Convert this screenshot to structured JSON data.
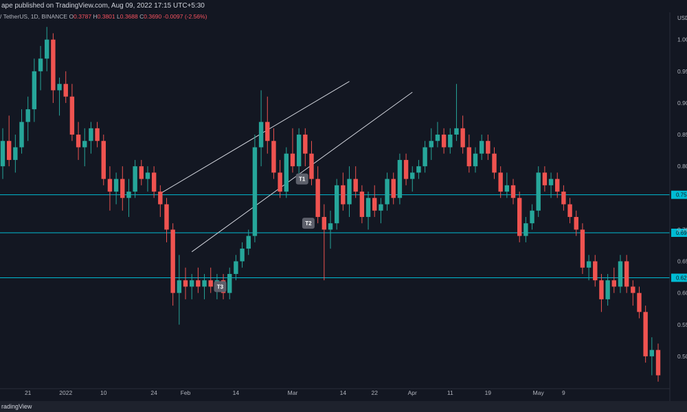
{
  "header": {
    "publish_text": "ape published on TradingView.com, Aug 09, 2022 17:15 UTC+5:30"
  },
  "symbol_line": {
    "symbol": "/ TetherUS, 1D, BINANCE",
    "o_label": "O",
    "o_value": "0.3787",
    "h_label": "H",
    "h_value": "0.3801",
    "l_label": "L",
    "l_value": "0.3688",
    "c_label": "C",
    "c_value": "0.3690",
    "change": "-0.0097 (-2.56%)"
  },
  "footer": {
    "brand": "radingView"
  },
  "colors": {
    "up": "#26a69a",
    "down": "#ef5350",
    "hline": "#00bcd4",
    "trend": "#d1d4dc",
    "tag_bg": "#5d606b"
  },
  "chart_data": {
    "type": "candlestick",
    "currency_label": "USD",
    "y_axis_ticks": [
      "1.00",
      "0.95",
      "0.90",
      "0.85",
      "0.80",
      "0.70",
      "0.65",
      "0.60",
      "0.55",
      "0.50"
    ],
    "ylim": [
      0.45,
      1.03
    ],
    "x_axis_ticks": [
      "21",
      "2022",
      "10",
      "24",
      "Feb",
      "14",
      "Mar",
      "14",
      "22",
      "Apr",
      "11",
      "19",
      "May",
      "9"
    ],
    "horizontal_lines": [
      {
        "price": 0.755,
        "label": "0.75"
      },
      {
        "price": 0.695,
        "label": "0.69"
      },
      {
        "price": 0.624,
        "label": "0.62"
      }
    ],
    "trendlines": [
      {
        "from": [
          25,
          0.757
        ],
        "to": [
          55,
          0.934
        ]
      },
      {
        "from": [
          30,
          0.665
        ],
        "to": [
          65,
          0.917
        ]
      }
    ],
    "annotations": [
      {
        "label": "T1",
        "at": [
          47.5,
          0.78
        ]
      },
      {
        "label": "T2",
        "at": [
          48.5,
          0.71
        ]
      },
      {
        "label": "T3",
        "at": [
          34.5,
          0.61
        ]
      }
    ],
    "ohlc": [
      [
        0.8,
        0.86,
        0.78,
        0.84
      ],
      [
        0.84,
        0.88,
        0.8,
        0.81
      ],
      [
        0.81,
        0.85,
        0.79,
        0.83
      ],
      [
        0.83,
        0.89,
        0.82,
        0.87
      ],
      [
        0.87,
        0.91,
        0.84,
        0.89
      ],
      [
        0.89,
        0.97,
        0.87,
        0.95
      ],
      [
        0.95,
        0.99,
        0.92,
        0.97
      ],
      [
        0.97,
        1.02,
        0.95,
        1.0
      ],
      [
        1.0,
        1.01,
        0.9,
        0.92
      ],
      [
        0.92,
        0.94,
        0.88,
        0.93
      ],
      [
        0.93,
        0.95,
        0.9,
        0.91
      ],
      [
        0.91,
        0.93,
        0.84,
        0.85
      ],
      [
        0.85,
        0.87,
        0.81,
        0.83
      ],
      [
        0.83,
        0.86,
        0.8,
        0.84
      ],
      [
        0.84,
        0.87,
        0.82,
        0.86
      ],
      [
        0.86,
        0.87,
        0.83,
        0.84
      ],
      [
        0.84,
        0.85,
        0.77,
        0.78
      ],
      [
        0.78,
        0.8,
        0.73,
        0.76
      ],
      [
        0.76,
        0.79,
        0.74,
        0.78
      ],
      [
        0.78,
        0.8,
        0.73,
        0.75
      ],
      [
        0.75,
        0.78,
        0.72,
        0.76
      ],
      [
        0.76,
        0.81,
        0.75,
        0.8
      ],
      [
        0.8,
        0.81,
        0.77,
        0.78
      ],
      [
        0.78,
        0.8,
        0.76,
        0.79
      ],
      [
        0.79,
        0.8,
        0.75,
        0.76
      ],
      [
        0.76,
        0.77,
        0.72,
        0.74
      ],
      [
        0.74,
        0.75,
        0.68,
        0.7
      ],
      [
        0.7,
        0.71,
        0.58,
        0.6
      ],
      [
        0.6,
        0.66,
        0.55,
        0.62
      ],
      [
        0.62,
        0.64,
        0.59,
        0.61
      ],
      [
        0.61,
        0.63,
        0.59,
        0.62
      ],
      [
        0.62,
        0.64,
        0.6,
        0.61
      ],
      [
        0.61,
        0.63,
        0.59,
        0.62
      ],
      [
        0.62,
        0.64,
        0.6,
        0.61
      ],
      [
        0.61,
        0.63,
        0.59,
        0.62
      ],
      [
        0.62,
        0.63,
        0.59,
        0.6
      ],
      [
        0.6,
        0.64,
        0.59,
        0.63
      ],
      [
        0.63,
        0.66,
        0.62,
        0.65
      ],
      [
        0.65,
        0.68,
        0.64,
        0.67
      ],
      [
        0.67,
        0.7,
        0.66,
        0.69
      ],
      [
        0.69,
        0.85,
        0.68,
        0.83
      ],
      [
        0.83,
        0.92,
        0.8,
        0.87
      ],
      [
        0.87,
        0.91,
        0.82,
        0.84
      ],
      [
        0.84,
        0.86,
        0.78,
        0.79
      ],
      [
        0.79,
        0.81,
        0.75,
        0.76
      ],
      [
        0.76,
        0.83,
        0.75,
        0.82
      ],
      [
        0.82,
        0.86,
        0.79,
        0.8
      ],
      [
        0.8,
        0.86,
        0.78,
        0.85
      ],
      [
        0.85,
        0.86,
        0.8,
        0.82
      ],
      [
        0.82,
        0.84,
        0.77,
        0.78
      ],
      [
        0.78,
        0.8,
        0.71,
        0.72
      ],
      [
        0.72,
        0.74,
        0.62,
        0.7
      ],
      [
        0.7,
        0.73,
        0.67,
        0.71
      ],
      [
        0.71,
        0.78,
        0.7,
        0.77
      ],
      [
        0.77,
        0.79,
        0.73,
        0.74
      ],
      [
        0.74,
        0.8,
        0.72,
        0.78
      ],
      [
        0.78,
        0.8,
        0.75,
        0.76
      ],
      [
        0.76,
        0.77,
        0.71,
        0.72
      ],
      [
        0.72,
        0.76,
        0.7,
        0.75
      ],
      [
        0.75,
        0.77,
        0.72,
        0.73
      ],
      [
        0.73,
        0.75,
        0.71,
        0.74
      ],
      [
        0.74,
        0.79,
        0.73,
        0.78
      ],
      [
        0.78,
        0.79,
        0.74,
        0.75
      ],
      [
        0.75,
        0.82,
        0.74,
        0.81
      ],
      [
        0.81,
        0.82,
        0.77,
        0.78
      ],
      [
        0.78,
        0.8,
        0.76,
        0.79
      ],
      [
        0.79,
        0.81,
        0.78,
        0.8
      ],
      [
        0.8,
        0.84,
        0.79,
        0.83
      ],
      [
        0.83,
        0.86,
        0.81,
        0.84
      ],
      [
        0.84,
        0.87,
        0.83,
        0.85
      ],
      [
        0.85,
        0.86,
        0.82,
        0.83
      ],
      [
        0.83,
        0.86,
        0.82,
        0.85
      ],
      [
        0.85,
        0.93,
        0.84,
        0.86
      ],
      [
        0.86,
        0.88,
        0.82,
        0.83
      ],
      [
        0.83,
        0.85,
        0.79,
        0.8
      ],
      [
        0.8,
        0.83,
        0.79,
        0.82
      ],
      [
        0.82,
        0.85,
        0.81,
        0.84
      ],
      [
        0.84,
        0.85,
        0.81,
        0.82
      ],
      [
        0.82,
        0.83,
        0.78,
        0.79
      ],
      [
        0.79,
        0.8,
        0.75,
        0.76
      ],
      [
        0.76,
        0.79,
        0.75,
        0.77
      ],
      [
        0.77,
        0.78,
        0.74,
        0.75
      ],
      [
        0.75,
        0.76,
        0.68,
        0.69
      ],
      [
        0.69,
        0.72,
        0.68,
        0.71
      ],
      [
        0.71,
        0.74,
        0.7,
        0.73
      ],
      [
        0.73,
        0.8,
        0.72,
        0.79
      ],
      [
        0.79,
        0.8,
        0.76,
        0.77
      ],
      [
        0.77,
        0.79,
        0.75,
        0.78
      ],
      [
        0.78,
        0.79,
        0.75,
        0.76
      ],
      [
        0.76,
        0.77,
        0.73,
        0.74
      ],
      [
        0.74,
        0.75,
        0.71,
        0.72
      ],
      [
        0.72,
        0.73,
        0.69,
        0.7
      ],
      [
        0.7,
        0.71,
        0.63,
        0.64
      ],
      [
        0.64,
        0.66,
        0.62,
        0.65
      ],
      [
        0.65,
        0.66,
        0.61,
        0.62
      ],
      [
        0.62,
        0.63,
        0.57,
        0.59
      ],
      [
        0.59,
        0.63,
        0.58,
        0.62
      ],
      [
        0.62,
        0.64,
        0.6,
        0.61
      ],
      [
        0.61,
        0.66,
        0.6,
        0.65
      ],
      [
        0.65,
        0.66,
        0.6,
        0.61
      ],
      [
        0.61,
        0.62,
        0.58,
        0.6
      ],
      [
        0.6,
        0.61,
        0.56,
        0.57
      ],
      [
        0.57,
        0.58,
        0.49,
        0.5
      ],
      [
        0.5,
        0.53,
        0.47,
        0.51
      ],
      [
        0.51,
        0.52,
        0.46,
        0.47
      ]
    ]
  }
}
